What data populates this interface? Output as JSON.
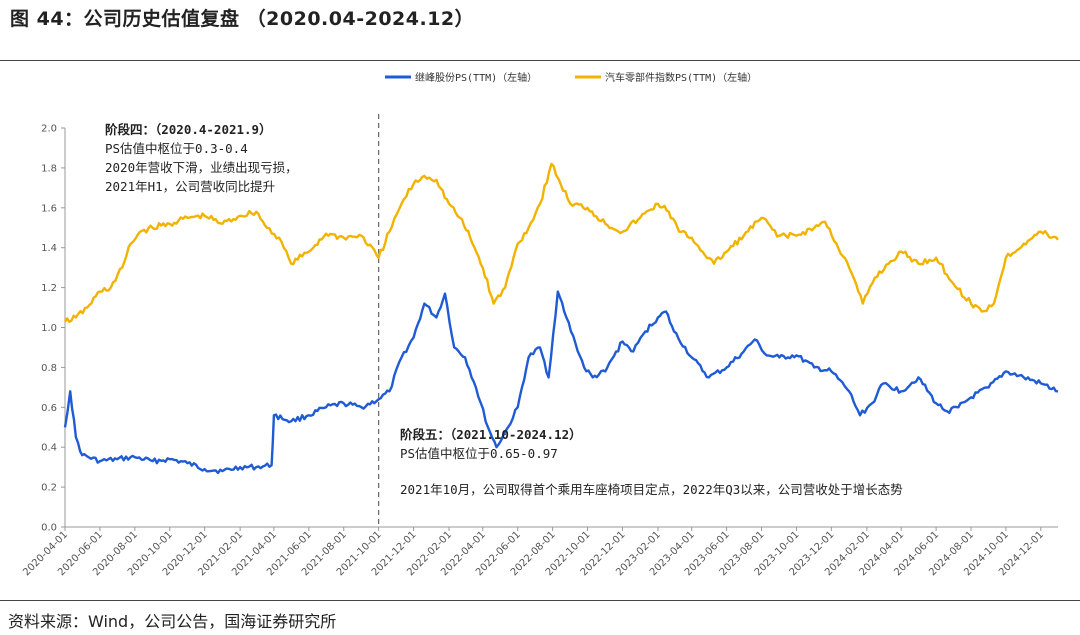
{
  "header": {
    "title": "图 44：公司历史估值复盘 （2020.04-2024.12）"
  },
  "footer": {
    "source": "资料来源：Wind，公司公告，国海证券研究所"
  },
  "colors": {
    "series_blue": "#1f5bd4",
    "series_yellow": "#f2b300",
    "divider": "#666666",
    "axis": "#999999"
  },
  "chart_data": {
    "type": "line",
    "ylim": [
      0.0,
      2.0
    ],
    "yticks": [
      "0.0",
      "0.2",
      "0.4",
      "0.6",
      "0.8",
      "1.0",
      "1.2",
      "1.4",
      "1.6",
      "1.8",
      "2.0"
    ],
    "xticks": [
      "2020-04-01",
      "2020-06-01",
      "2020-08-01",
      "2020-10-01",
      "2020-12-01",
      "2021-02-01",
      "2021-04-01",
      "2021-06-01",
      "2021-08-01",
      "2021-10-01",
      "2021-12-01",
      "2022-02-01",
      "2022-04-01",
      "2022-06-01",
      "2022-08-01",
      "2022-10-01",
      "2022-12-01",
      "2023-02-01",
      "2023-04-01",
      "2023-06-01",
      "2023-08-01",
      "2023-10-01",
      "2023-12-01",
      "2024-02-01",
      "2024-04-01",
      "2024-06-01",
      "2024-08-01",
      "2024-10-01",
      "2024-12-01"
    ],
    "divider_x": "2021-10-01",
    "legend": [
      {
        "name": "继峰股份PS(TTM)（左轴）",
        "color": "#1f5bd4"
      },
      {
        "name": "汽车零部件指数PS(TTM)（左轴）",
        "color": "#f2b300"
      }
    ],
    "series": [
      {
        "name": "继峰股份PS(TTM)（左轴）",
        "color": "#1f5bd4",
        "points": [
          [
            "2020-04-01",
            0.5
          ],
          [
            "2020-04-10",
            0.68
          ],
          [
            "2020-04-20",
            0.45
          ],
          [
            "2020-05-01",
            0.36
          ],
          [
            "2020-06-01",
            0.33
          ],
          [
            "2020-07-01",
            0.34
          ],
          [
            "2020-08-01",
            0.35
          ],
          [
            "2020-09-01",
            0.33
          ],
          [
            "2020-10-01",
            0.34
          ],
          [
            "2020-11-01",
            0.32
          ],
          [
            "2020-12-01",
            0.29
          ],
          [
            "2021-01-01",
            0.28
          ],
          [
            "2021-02-01",
            0.3
          ],
          [
            "2021-03-01",
            0.3
          ],
          [
            "2021-03-28",
            0.31
          ],
          [
            "2021-04-01",
            0.56
          ],
          [
            "2021-05-01",
            0.53
          ],
          [
            "2021-06-01",
            0.56
          ],
          [
            "2021-07-01",
            0.6
          ],
          [
            "2021-08-01",
            0.62
          ],
          [
            "2021-09-01",
            0.6
          ],
          [
            "2021-10-01",
            0.64
          ],
          [
            "2021-10-20",
            0.68
          ],
          [
            "2021-11-10",
            0.85
          ],
          [
            "2021-12-01",
            0.95
          ],
          [
            "2021-12-20",
            1.12
          ],
          [
            "2022-01-10",
            1.05
          ],
          [
            "2022-01-25",
            1.17
          ],
          [
            "2022-02-10",
            0.9
          ],
          [
            "2022-03-01",
            0.85
          ],
          [
            "2022-03-20",
            0.7
          ],
          [
            "2022-04-10",
            0.5
          ],
          [
            "2022-04-25",
            0.4
          ],
          [
            "2022-05-15",
            0.5
          ],
          [
            "2022-06-01",
            0.6
          ],
          [
            "2022-06-20",
            0.85
          ],
          [
            "2022-07-10",
            0.9
          ],
          [
            "2022-07-25",
            0.75
          ],
          [
            "2022-08-10",
            1.18
          ],
          [
            "2022-08-25",
            1.05
          ],
          [
            "2022-09-10",
            0.92
          ],
          [
            "2022-09-25",
            0.8
          ],
          [
            "2022-10-10",
            0.75
          ],
          [
            "2022-11-01",
            0.78
          ],
          [
            "2022-12-01",
            0.93
          ],
          [
            "2022-12-20",
            0.88
          ],
          [
            "2023-01-10",
            0.98
          ],
          [
            "2023-02-01",
            1.05
          ],
          [
            "2023-02-15",
            1.08
          ],
          [
            "2023-03-01",
            0.98
          ],
          [
            "2023-04-01",
            0.85
          ],
          [
            "2023-05-01",
            0.75
          ],
          [
            "2023-06-01",
            0.8
          ],
          [
            "2023-07-01",
            0.88
          ],
          [
            "2023-07-20",
            0.94
          ],
          [
            "2023-08-10",
            0.86
          ],
          [
            "2023-09-01",
            0.85
          ],
          [
            "2023-10-01",
            0.86
          ],
          [
            "2023-11-01",
            0.8
          ],
          [
            "2023-12-01",
            0.78
          ],
          [
            "2024-01-01",
            0.68
          ],
          [
            "2024-01-20",
            0.56
          ],
          [
            "2024-02-10",
            0.62
          ],
          [
            "2024-03-01",
            0.72
          ],
          [
            "2024-04-01",
            0.68
          ],
          [
            "2024-05-01",
            0.75
          ],
          [
            "2024-06-01",
            0.62
          ],
          [
            "2024-06-20",
            0.58
          ],
          [
            "2024-07-10",
            0.6
          ],
          [
            "2024-08-01",
            0.65
          ],
          [
            "2024-09-01",
            0.7
          ],
          [
            "2024-10-01",
            0.78
          ],
          [
            "2024-11-01",
            0.75
          ],
          [
            "2024-12-01",
            0.72
          ],
          [
            "2024-12-31",
            0.68
          ]
        ]
      },
      {
        "name": "汽车零部件指数PS(TTM)（左轴）",
        "color": "#f2b300",
        "points": [
          [
            "2020-04-01",
            1.03
          ],
          [
            "2020-04-20",
            1.05
          ],
          [
            "2020-05-10",
            1.1
          ],
          [
            "2020-06-01",
            1.18
          ],
          [
            "2020-06-20",
            1.2
          ],
          [
            "2020-07-10",
            1.3
          ],
          [
            "2020-07-25",
            1.42
          ],
          [
            "2020-08-10",
            1.48
          ],
          [
            "2020-09-01",
            1.5
          ],
          [
            "2020-10-01",
            1.52
          ],
          [
            "2020-11-01",
            1.55
          ],
          [
            "2020-12-01",
            1.56
          ],
          [
            "2021-01-01",
            1.52
          ],
          [
            "2021-02-01",
            1.56
          ],
          [
            "2021-03-01",
            1.58
          ],
          [
            "2021-03-20",
            1.5
          ],
          [
            "2021-04-10",
            1.45
          ],
          [
            "2021-05-01",
            1.32
          ],
          [
            "2021-06-01",
            1.38
          ],
          [
            "2021-07-01",
            1.47
          ],
          [
            "2021-08-01",
            1.45
          ],
          [
            "2021-09-01",
            1.46
          ],
          [
            "2021-10-01",
            1.35
          ],
          [
            "2021-10-20",
            1.48
          ],
          [
            "2021-11-10",
            1.62
          ],
          [
            "2021-12-01",
            1.72
          ],
          [
            "2021-12-20",
            1.76
          ],
          [
            "2022-01-10",
            1.74
          ],
          [
            "2022-02-01",
            1.62
          ],
          [
            "2022-02-20",
            1.55
          ],
          [
            "2022-03-10",
            1.45
          ],
          [
            "2022-04-01",
            1.3
          ],
          [
            "2022-04-20",
            1.12
          ],
          [
            "2022-05-10",
            1.2
          ],
          [
            "2022-06-01",
            1.42
          ],
          [
            "2022-06-20",
            1.5
          ],
          [
            "2022-07-10",
            1.62
          ],
          [
            "2022-07-30",
            1.82
          ],
          [
            "2022-08-15",
            1.72
          ],
          [
            "2022-09-01",
            1.62
          ],
          [
            "2022-10-01",
            1.6
          ],
          [
            "2022-11-01",
            1.52
          ],
          [
            "2022-12-01",
            1.48
          ],
          [
            "2023-01-01",
            1.55
          ],
          [
            "2023-02-01",
            1.62
          ],
          [
            "2023-02-20",
            1.58
          ],
          [
            "2023-03-10",
            1.48
          ],
          [
            "2023-04-01",
            1.45
          ],
          [
            "2023-04-20",
            1.38
          ],
          [
            "2023-05-10",
            1.32
          ],
          [
            "2023-06-01",
            1.38
          ],
          [
            "2023-07-01",
            1.46
          ],
          [
            "2023-08-01",
            1.55
          ],
          [
            "2023-09-01",
            1.46
          ],
          [
            "2023-10-01",
            1.46
          ],
          [
            "2023-11-01",
            1.5
          ],
          [
            "2023-11-20",
            1.53
          ],
          [
            "2023-12-10",
            1.42
          ],
          [
            "2024-01-01",
            1.3
          ],
          [
            "2024-01-25",
            1.12
          ],
          [
            "2024-02-15",
            1.25
          ],
          [
            "2024-03-10",
            1.32
          ],
          [
            "2024-04-01",
            1.38
          ],
          [
            "2024-05-01",
            1.32
          ],
          [
            "2024-06-01",
            1.35
          ],
          [
            "2024-07-01",
            1.22
          ],
          [
            "2024-08-01",
            1.12
          ],
          [
            "2024-08-20",
            1.08
          ],
          [
            "2024-09-10",
            1.12
          ],
          [
            "2024-10-01",
            1.35
          ],
          [
            "2024-11-01",
            1.42
          ],
          [
            "2024-12-01",
            1.48
          ],
          [
            "2024-12-31",
            1.44
          ]
        ]
      }
    ],
    "annotations": [
      {
        "id": "stage4",
        "lines": [
          "阶段四：（2020.4-2021.9）",
          "PS估值中枢位于0.3-0.4",
          "2020年营收下滑，业绩出现亏损，",
          "2021年H1，公司营收同比提升"
        ]
      },
      {
        "id": "stage5",
        "lines": [
          "阶段五：（2021.10-2024.12）",
          "PS估值中枢位于0.65-0.97",
          "",
          "2021年10月，公司取得首个乘用车座椅项目定点，2022年Q3以来，公司营收处于增长态势"
        ]
      }
    ]
  }
}
